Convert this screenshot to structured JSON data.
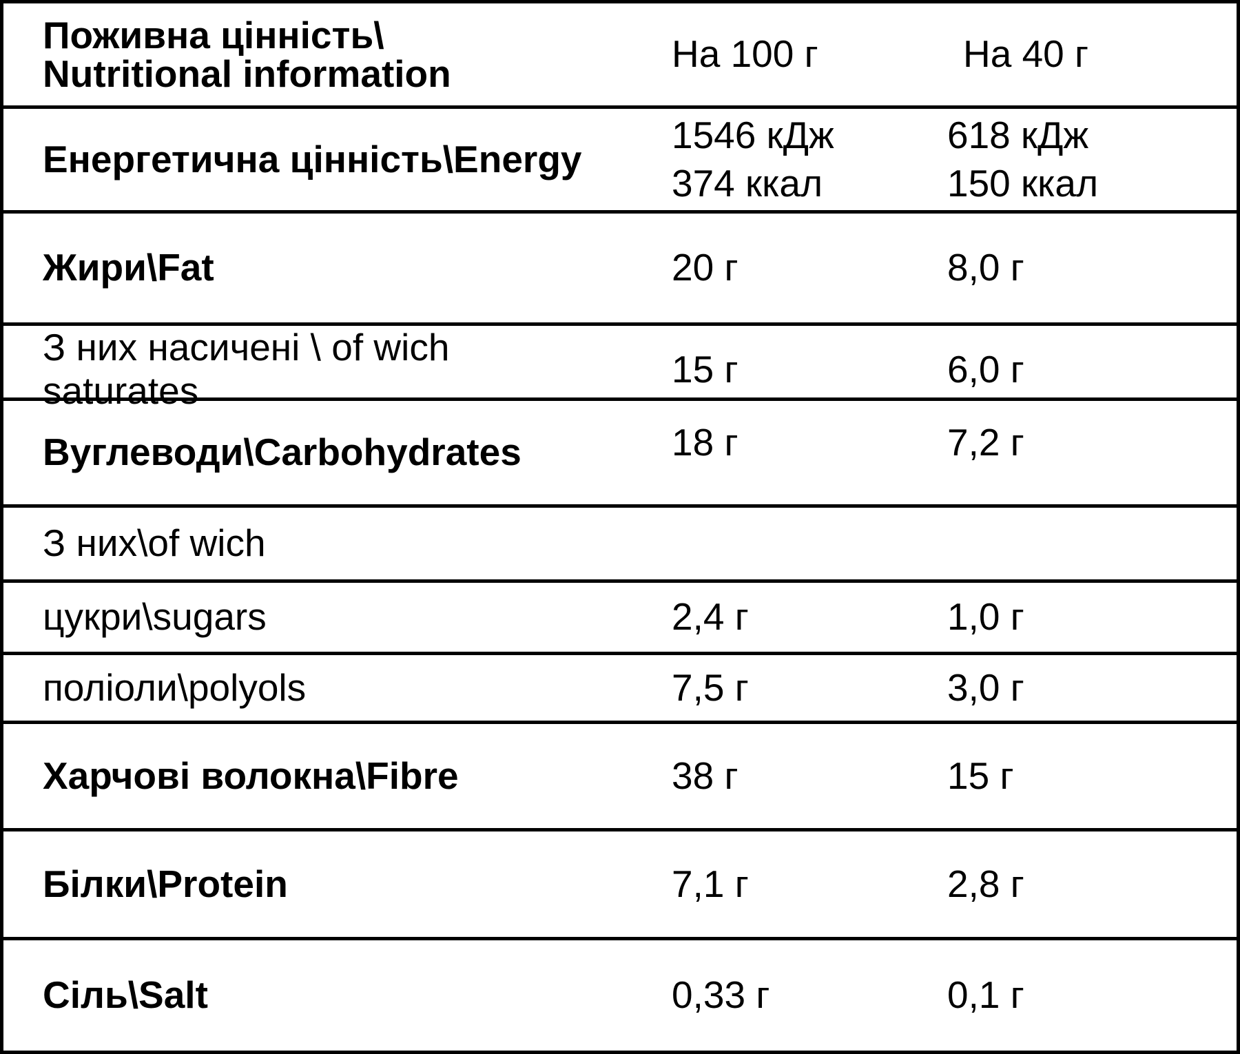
{
  "table": {
    "colors": {
      "background": "#ffffff",
      "border": "#000000",
      "text": "#000000"
    },
    "header": {
      "title": "Поживна цінність\\\nNutritional information",
      "col_per_100g": "На 100 г",
      "col_per_40g": "На 40 г"
    },
    "rows": [
      {
        "label": "Енергетична цінність\\Energy",
        "bold": true,
        "per_100g": "1546 кДж\n374 ккал",
        "per_40g": "618 кДж\n150 ккал"
      },
      {
        "label": "Жири\\Fat",
        "bold": true,
        "per_100g": "20 г",
        "per_40g": "8,0 г"
      },
      {
        "label": "З них насичені \\ of wich saturates",
        "bold": false,
        "per_100g": "15 г",
        "per_40g": "6,0 г"
      },
      {
        "label": "Вуглеводи\\Carbohydrates",
        "bold": true,
        "per_100g": "18 г",
        "per_40g": "7,2 г"
      },
      {
        "label": "З них\\of wich",
        "bold": false,
        "per_100g": "",
        "per_40g": ""
      },
      {
        "label": "цукри\\sugars",
        "bold": false,
        "per_100g": "2,4 г",
        "per_40g": "1,0 г"
      },
      {
        "label": "поліоли\\polyols",
        "bold": false,
        "per_100g": "7,5 г",
        "per_40g": "3,0 г"
      },
      {
        "label": "Харчові волокна\\Fibre",
        "bold": true,
        "per_100g": "38 г",
        "per_40g": "15 г"
      },
      {
        "label": "Білки\\Protein",
        "bold": true,
        "per_100g": "7,1 г",
        "per_40g": "2,8 г"
      },
      {
        "label": "Сіль\\Salt",
        "bold": true,
        "per_100g": "0,33 г",
        "per_40g": "0,1 г"
      }
    ]
  }
}
